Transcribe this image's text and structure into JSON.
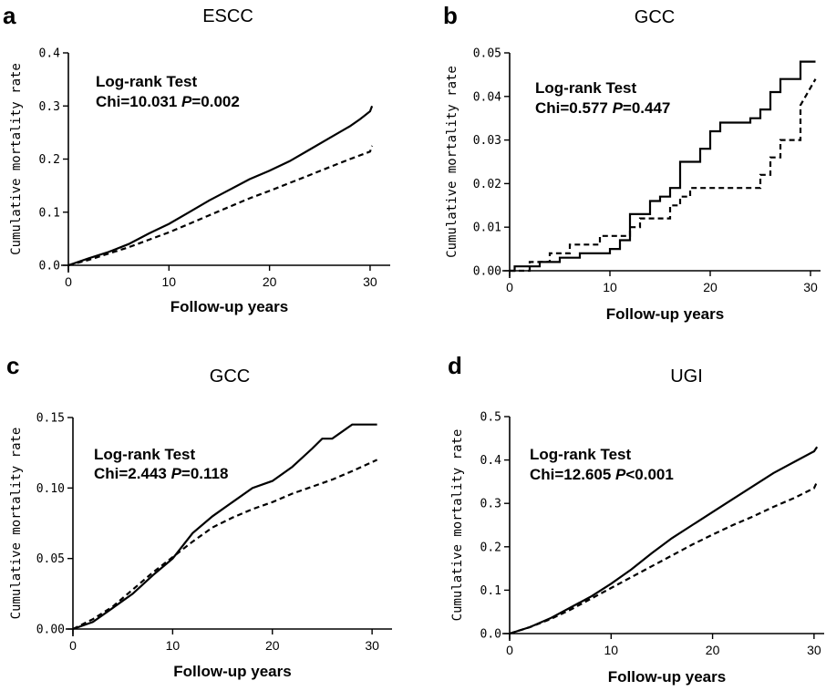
{
  "chart_data": [
    {
      "type": "line",
      "panel_letter": "a",
      "title": "ESCC",
      "xlabel": "Follow-up years",
      "ylabel": "Cumulative mortality rate",
      "xlim": [
        0,
        32
      ],
      "ylim": [
        0,
        0.4
      ],
      "xticks": [
        0,
        10,
        20,
        30
      ],
      "yticks": [
        0.0,
        0.1,
        0.2,
        0.3,
        0.4
      ],
      "ytick_labels": [
        "0.0",
        "0.1",
        "0.2",
        "0.3",
        "0.4"
      ],
      "annotation": {
        "line1": "Log-rank Test",
        "chi_prefix": "Chi=10.031 ",
        "p_symbol": "P",
        "p_value": "=0.002"
      },
      "series": [
        {
          "style": "solid",
          "x": [
            0,
            2,
            4,
            6,
            8,
            10,
            12,
            14,
            16,
            18,
            20,
            22,
            24,
            26,
            28,
            29,
            30,
            30.2
          ],
          "y": [
            0,
            0.013,
            0.025,
            0.04,
            0.06,
            0.078,
            0.1,
            0.122,
            0.142,
            0.162,
            0.178,
            0.196,
            0.218,
            0.24,
            0.262,
            0.275,
            0.29,
            0.3
          ]
        },
        {
          "style": "dashed",
          "x": [
            0,
            2,
            4,
            6,
            8,
            10,
            12,
            14,
            16,
            18,
            20,
            22,
            24,
            26,
            28,
            30,
            30.2
          ],
          "y": [
            0,
            0.01,
            0.022,
            0.034,
            0.048,
            0.062,
            0.078,
            0.094,
            0.11,
            0.126,
            0.14,
            0.155,
            0.17,
            0.185,
            0.2,
            0.214,
            0.225
          ]
        }
      ]
    },
    {
      "type": "line",
      "panel_letter": "b",
      "title": "GCC",
      "xlabel": "Follow-up years",
      "ylabel": "Cumulative mortality rate",
      "xlim": [
        0,
        31
      ],
      "ylim": [
        0,
        0.05
      ],
      "xticks": [
        0,
        10,
        20,
        30
      ],
      "yticks": [
        0.0,
        0.01,
        0.02,
        0.03,
        0.04,
        0.05
      ],
      "ytick_labels": [
        "0.00",
        "0.01",
        "0.02",
        "0.03",
        "0.04",
        "0.05"
      ],
      "annotation": {
        "line1": "Log-rank Test",
        "chi_prefix": "Chi=0.577 ",
        "p_symbol": "P",
        "p_value": "=0.447"
      },
      "series": [
        {
          "style": "solid",
          "x": [
            0,
            0.5,
            0.5,
            3,
            3,
            5,
            5,
            7,
            7,
            10,
            10,
            11,
            11,
            12,
            12,
            14,
            14,
            15,
            15,
            16,
            16,
            17,
            17,
            19,
            19,
            20,
            20,
            21,
            21,
            24,
            24,
            25,
            25,
            26,
            26,
            27,
            27,
            29,
            29,
            30.5
          ],
          "y": [
            0,
            0,
            0.001,
            0.001,
            0.002,
            0.002,
            0.003,
            0.003,
            0.004,
            0.004,
            0.005,
            0.005,
            0.007,
            0.007,
            0.013,
            0.013,
            0.016,
            0.016,
            0.017,
            0.017,
            0.019,
            0.019,
            0.025,
            0.025,
            0.028,
            0.028,
            0.032,
            0.032,
            0.034,
            0.034,
            0.035,
            0.035,
            0.037,
            0.037,
            0.041,
            0.041,
            0.044,
            0.044,
            0.048,
            0.048
          ]
        },
        {
          "style": "dashed",
          "x": [
            0,
            2,
            2,
            4,
            4,
            6,
            6,
            9,
            9,
            12,
            12,
            13,
            13,
            16,
            16,
            17,
            17,
            18,
            18,
            20,
            20,
            25,
            25,
            26,
            26,
            27,
            27,
            29,
            29,
            30.5
          ],
          "y": [
            0,
            0,
            0.002,
            0.002,
            0.004,
            0.004,
            0.006,
            0.006,
            0.008,
            0.008,
            0.01,
            0.01,
            0.012,
            0.012,
            0.015,
            0.015,
            0.017,
            0.017,
            0.019,
            0.019,
            0.019,
            0.019,
            0.022,
            0.022,
            0.026,
            0.026,
            0.03,
            0.03,
            0.038,
            0.044
          ]
        }
      ]
    },
    {
      "type": "line",
      "panel_letter": "c",
      "title": "GCC",
      "xlabel": "Follow-up years",
      "ylabel": "Cumulative mortality rate",
      "xlim": [
        0,
        32
      ],
      "ylim": [
        0,
        0.15
      ],
      "xticks": [
        0,
        10,
        20,
        30
      ],
      "yticks": [
        0.0,
        0.05,
        0.1,
        0.15
      ],
      "ytick_labels": [
        "0.00",
        "0.05",
        "0.10",
        "0.15"
      ],
      "annotation": {
        "line1": "Log-rank Test",
        "chi_prefix": "Chi=2.443 ",
        "p_symbol": "P",
        "p_value": "=0.118"
      },
      "series": [
        {
          "style": "solid",
          "x": [
            0,
            2,
            4,
            6,
            8,
            10,
            12,
            14,
            16,
            18,
            20,
            22,
            24,
            25,
            26,
            28,
            30.5
          ],
          "y": [
            0,
            0.005,
            0.015,
            0.025,
            0.038,
            0.05,
            0.068,
            0.08,
            0.09,
            0.1,
            0.105,
            0.115,
            0.128,
            0.135,
            0.135,
            0.145,
            0.145
          ]
        },
        {
          "style": "dashed",
          "x": [
            0,
            2,
            4,
            6,
            8,
            10,
            12,
            14,
            16,
            18,
            20,
            22,
            24,
            26,
            28,
            30.5
          ],
          "y": [
            0,
            0.007,
            0.016,
            0.028,
            0.04,
            0.051,
            0.062,
            0.072,
            0.079,
            0.085,
            0.09,
            0.096,
            0.101,
            0.106,
            0.112,
            0.12
          ]
        }
      ]
    },
    {
      "type": "line",
      "panel_letter": "d",
      "title": "UGI",
      "xlabel": "Follow-up years",
      "ylabel": "Cumulative mortality rate",
      "xlim": [
        0,
        31
      ],
      "ylim": [
        0,
        0.5
      ],
      "xticks": [
        0,
        10,
        20,
        30
      ],
      "yticks": [
        0.0,
        0.1,
        0.2,
        0.3,
        0.4,
        0.5
      ],
      "ytick_labels": [
        "0.0",
        "0.1",
        "0.2",
        "0.3",
        "0.4",
        "0.5"
      ],
      "annotation": {
        "line1": "Log-rank Test",
        "chi_prefix": "Chi=12.605 ",
        "p_symbol": "P",
        "p_value": "<0.001"
      },
      "series": [
        {
          "style": "solid",
          "x": [
            0,
            2,
            4,
            6,
            8,
            10,
            12,
            14,
            16,
            18,
            20,
            22,
            24,
            26,
            28,
            30,
            30.3
          ],
          "y": [
            0,
            0.015,
            0.035,
            0.06,
            0.085,
            0.115,
            0.148,
            0.185,
            0.22,
            0.25,
            0.28,
            0.31,
            0.34,
            0.37,
            0.395,
            0.42,
            0.43
          ]
        },
        {
          "style": "dashed",
          "x": [
            0,
            2,
            4,
            6,
            8,
            10,
            12,
            14,
            16,
            18,
            20,
            22,
            24,
            26,
            28,
            30,
            30.3
          ],
          "y": [
            0,
            0.015,
            0.033,
            0.055,
            0.08,
            0.105,
            0.13,
            0.155,
            0.18,
            0.205,
            0.228,
            0.25,
            0.27,
            0.292,
            0.312,
            0.335,
            0.35
          ]
        }
      ]
    }
  ]
}
